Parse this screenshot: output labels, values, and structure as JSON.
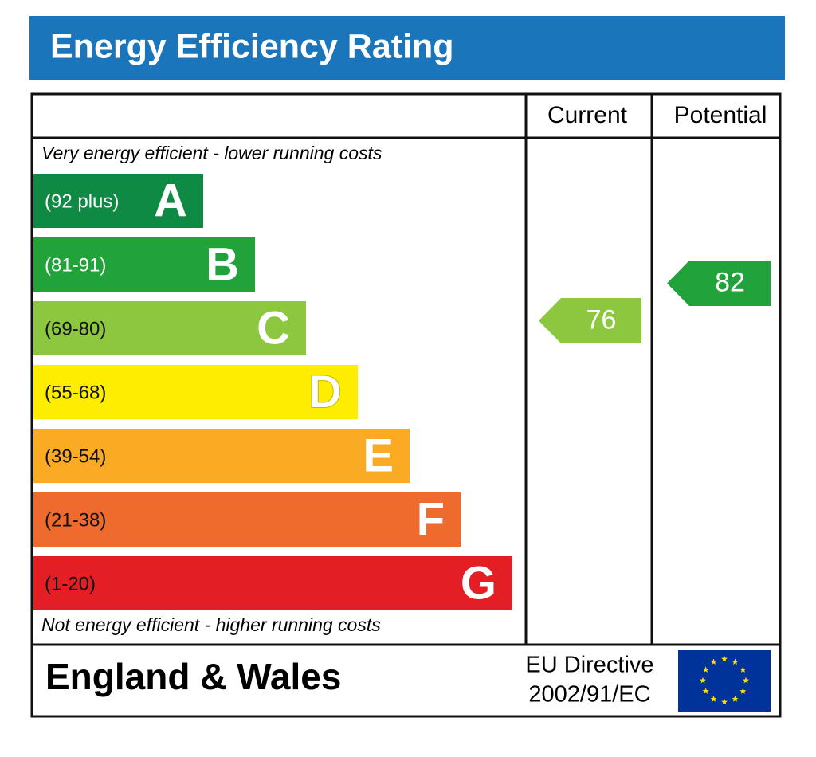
{
  "title": "Energy Efficiency Rating",
  "headers": {
    "current": "Current",
    "potential": "Potential"
  },
  "top_note": "Very energy efficient - lower running costs",
  "bands": [
    {
      "range": "(92 plus)",
      "letter": "A",
      "color": "#0f8a45"
    },
    {
      "range": "(81-91)",
      "letter": "B",
      "color": "#22a23a"
    },
    {
      "range": "(69-80)",
      "letter": "C",
      "color": "#8dc63f"
    },
    {
      "range": "(55-68)",
      "letter": "D",
      "color": "#ffed00"
    },
    {
      "range": "(39-54)",
      "letter": "E",
      "color": "#fbaa24"
    },
    {
      "range": "(21-38)",
      "letter": "F",
      "color": "#ee6a2d"
    },
    {
      "range": "(1-20)",
      "letter": "G",
      "color": "#e31e25"
    }
  ],
  "bottom_note": "Not energy efficient - higher running costs",
  "current": {
    "value": 76,
    "color": "#8dc63f"
  },
  "potential": {
    "value": 82,
    "color": "#22a23a"
  },
  "footer": {
    "region": "England & Wales",
    "directive": [
      "EU Directive",
      "2002/91/EC"
    ]
  }
}
